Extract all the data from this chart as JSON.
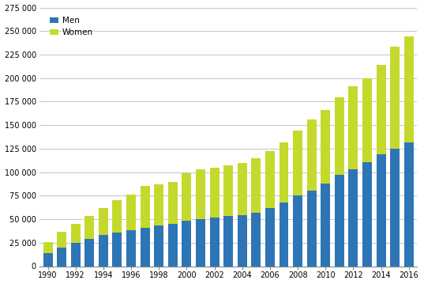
{
  "years": [
    1990,
    1991,
    1992,
    1993,
    1994,
    1995,
    1996,
    1997,
    1998,
    1999,
    2000,
    2001,
    2002,
    2003,
    2004,
    2005,
    2006,
    2007,
    2008,
    2009,
    2010,
    2011,
    2012,
    2013,
    2014,
    2015,
    2016
  ],
  "men": [
    13500,
    20000,
    24500,
    29000,
    33500,
    36000,
    38500,
    41000,
    43000,
    45000,
    48000,
    50000,
    52000,
    53000,
    54000,
    57000,
    62000,
    68000,
    75000,
    80000,
    88000,
    97000,
    103000,
    111000,
    119000,
    125000,
    132000
  ],
  "women": [
    12500,
    17000,
    20500,
    24000,
    28500,
    34000,
    37500,
    44000,
    44000,
    45000,
    51000,
    53000,
    53000,
    54000,
    56000,
    58000,
    60000,
    64000,
    69000,
    76000,
    78000,
    83000,
    88000,
    89000,
    95000,
    108000,
    112000
  ],
  "men_color": "#2E75B6",
  "women_color": "#C5D92D",
  "background_color": "#FFFFFF",
  "grid_color": "#BBBBBB",
  "ylim": [
    0,
    275000
  ],
  "yticks": [
    0,
    25000,
    50000,
    75000,
    100000,
    125000,
    150000,
    175000,
    200000,
    225000,
    250000,
    275000
  ],
  "ytick_labels": [
    "0",
    "25 000",
    "50 000",
    "75 000",
    "100 000",
    "125 000",
    "150 000",
    "175 000",
    "200 000",
    "225 000",
    "250 000",
    "275 000"
  ],
  "legend_labels": [
    "Men",
    "Women"
  ],
  "legend_colors": [
    "#2E75B6",
    "#C5D92D"
  ],
  "bar_width": 0.68
}
